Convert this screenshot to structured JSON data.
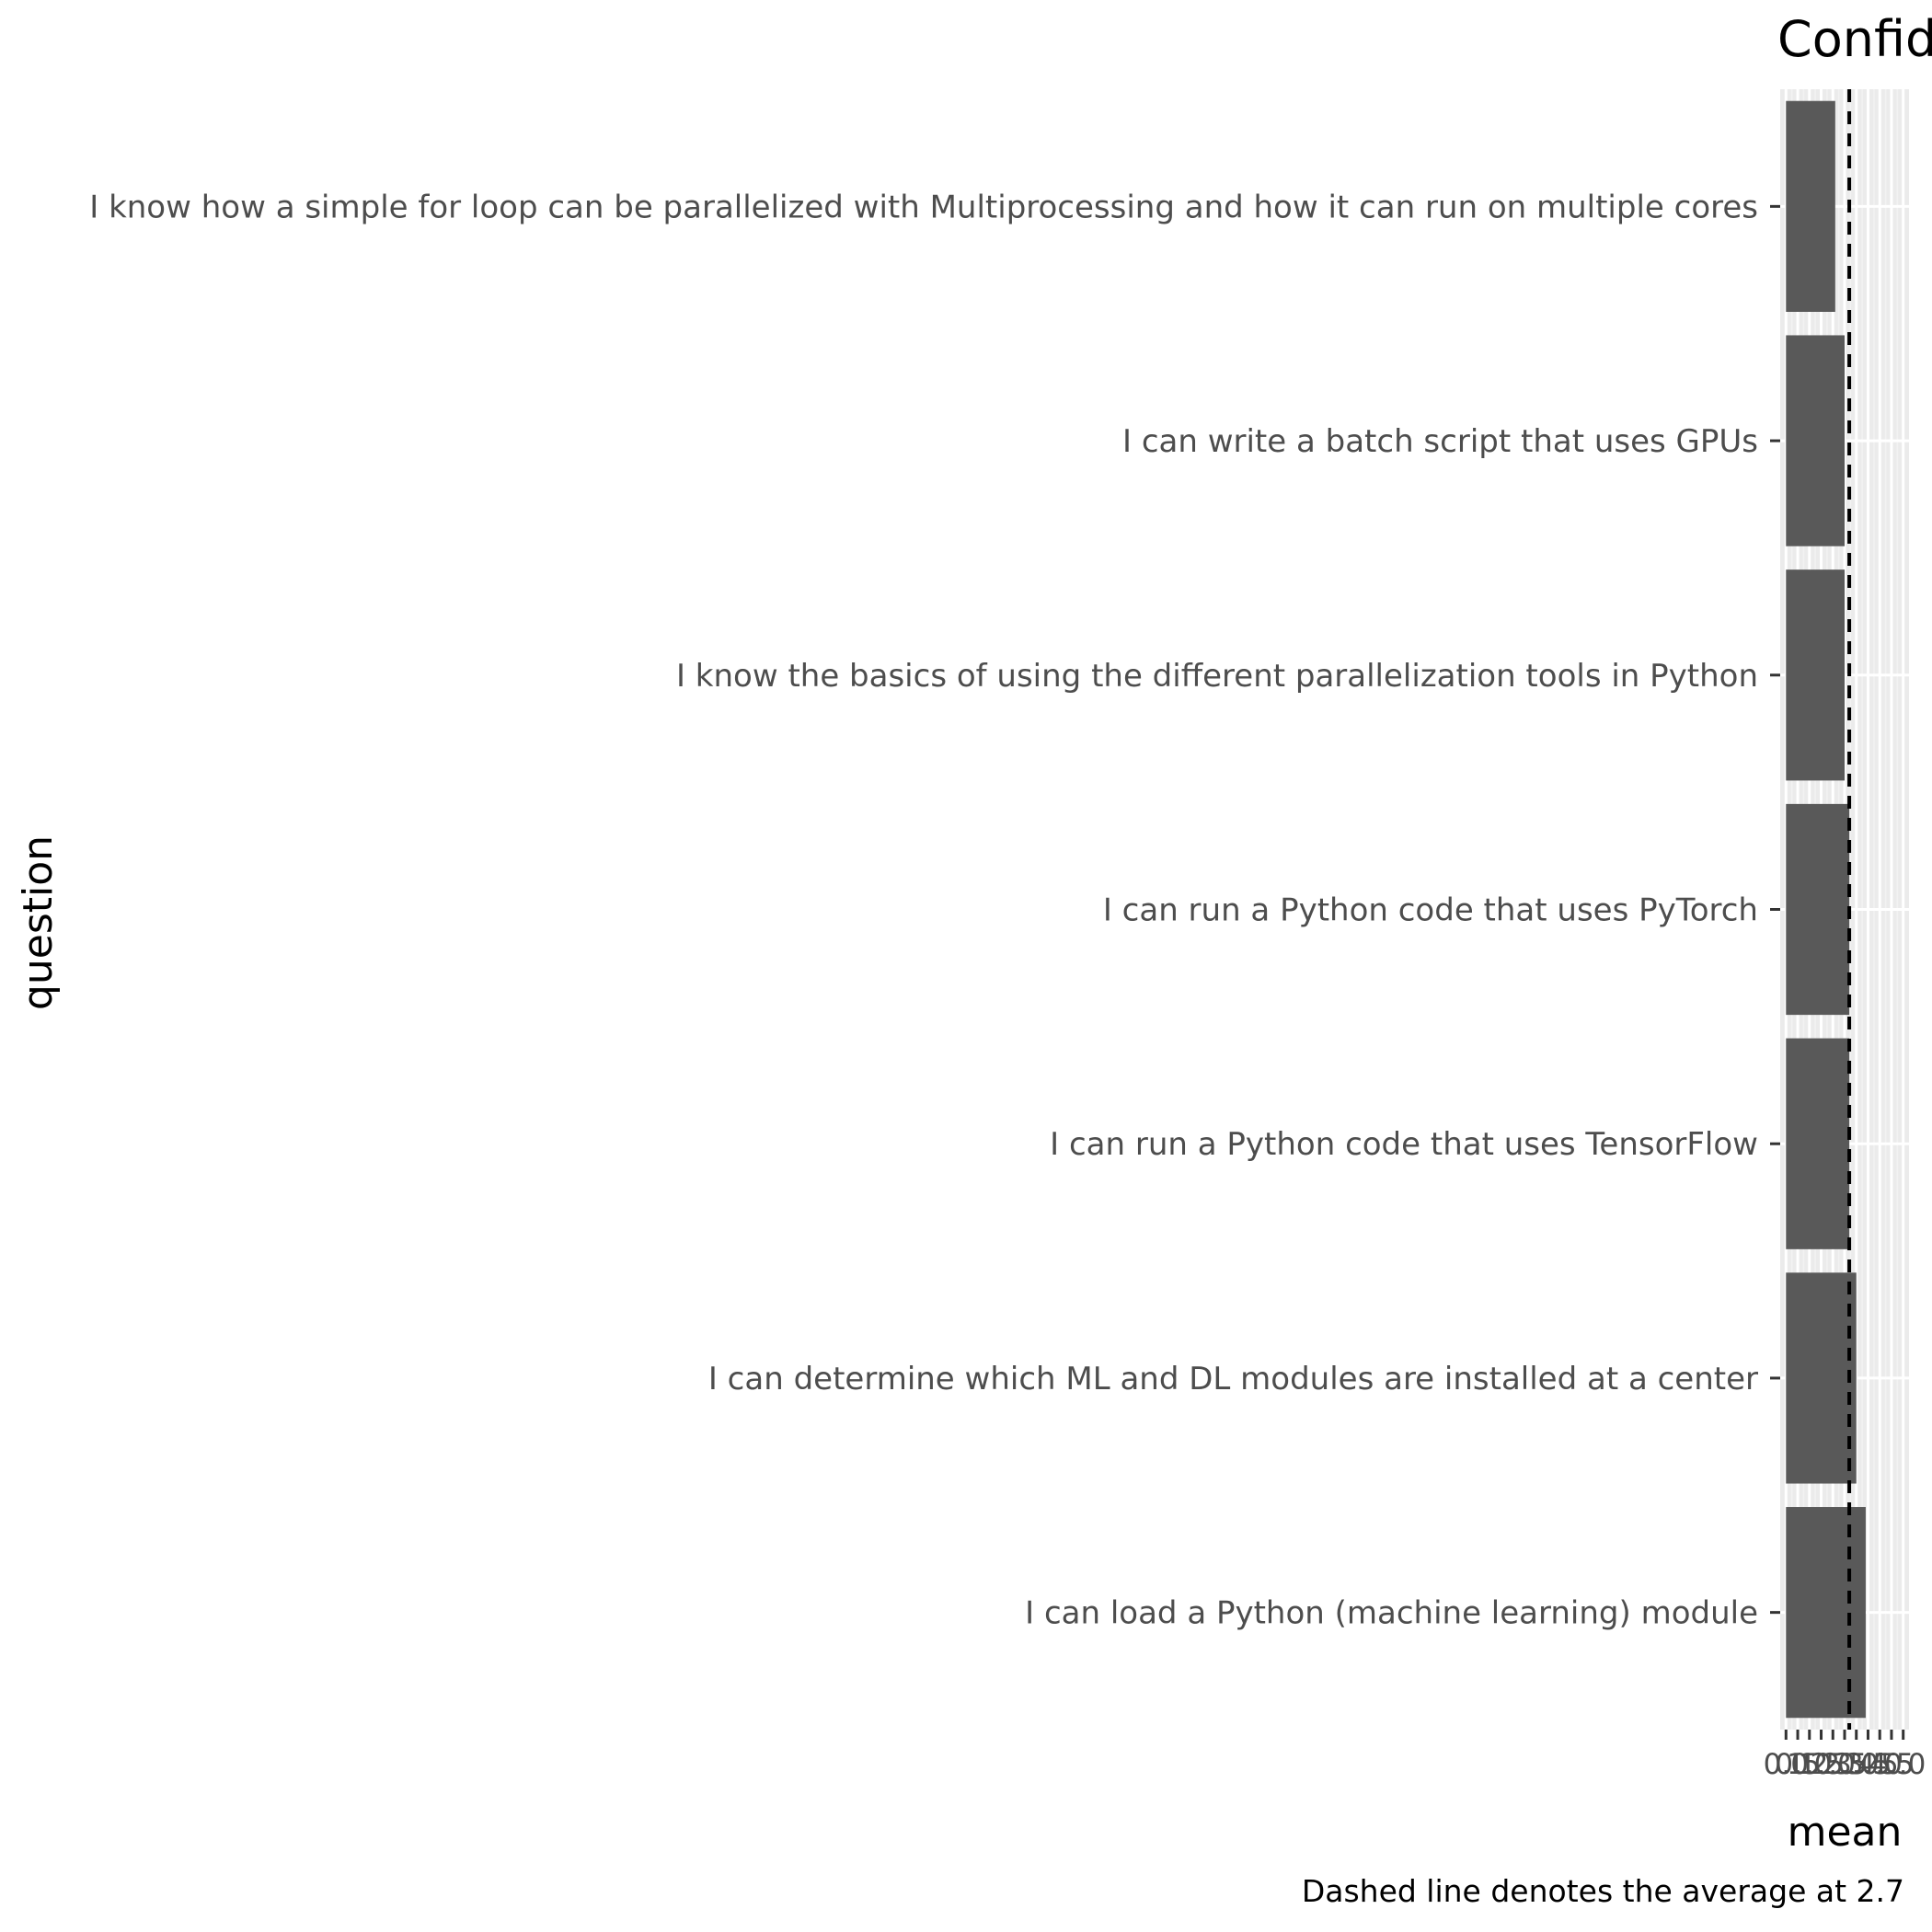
{
  "chart_data": {
    "type": "bar",
    "orientation": "horizontal",
    "title": "Confid",
    "xlabel": "mean",
    "ylabel": "question",
    "caption": "Dashed line denotes the average at 2.7",
    "categories": [
      "I know how a simple for loop can be parallelized with Multiprocessing and how it can run on multiple cores",
      "I can write a batch script that uses GPUs",
      "I know the basics of using the different parallelization tools in Python",
      "I can run a Python code that uses PyTorch",
      "I can run a Python code that uses TensorFlow",
      "I can determine which ML and DL modules are installed at a center",
      "I can load a Python (machine learning) module"
    ],
    "values": [
      2.1,
      2.5,
      2.5,
      2.7,
      2.7,
      3.0,
      3.4
    ],
    "xlim": [
      0,
      5
    ],
    "x_ticks": [
      "0.0",
      "0.5",
      "1.0",
      "1.5",
      "2.0",
      "2.5",
      "3.0",
      "3.5",
      "4.0",
      "4.5",
      "5.0"
    ],
    "reference_line": {
      "value": 2.7,
      "style": "dashed"
    },
    "grid": true,
    "colors": {
      "bar": "#595959",
      "panel": "#ebebeb",
      "grid_major": "#ffffff",
      "grid_minor": "#f2f2f2",
      "reference": "#000000"
    }
  }
}
